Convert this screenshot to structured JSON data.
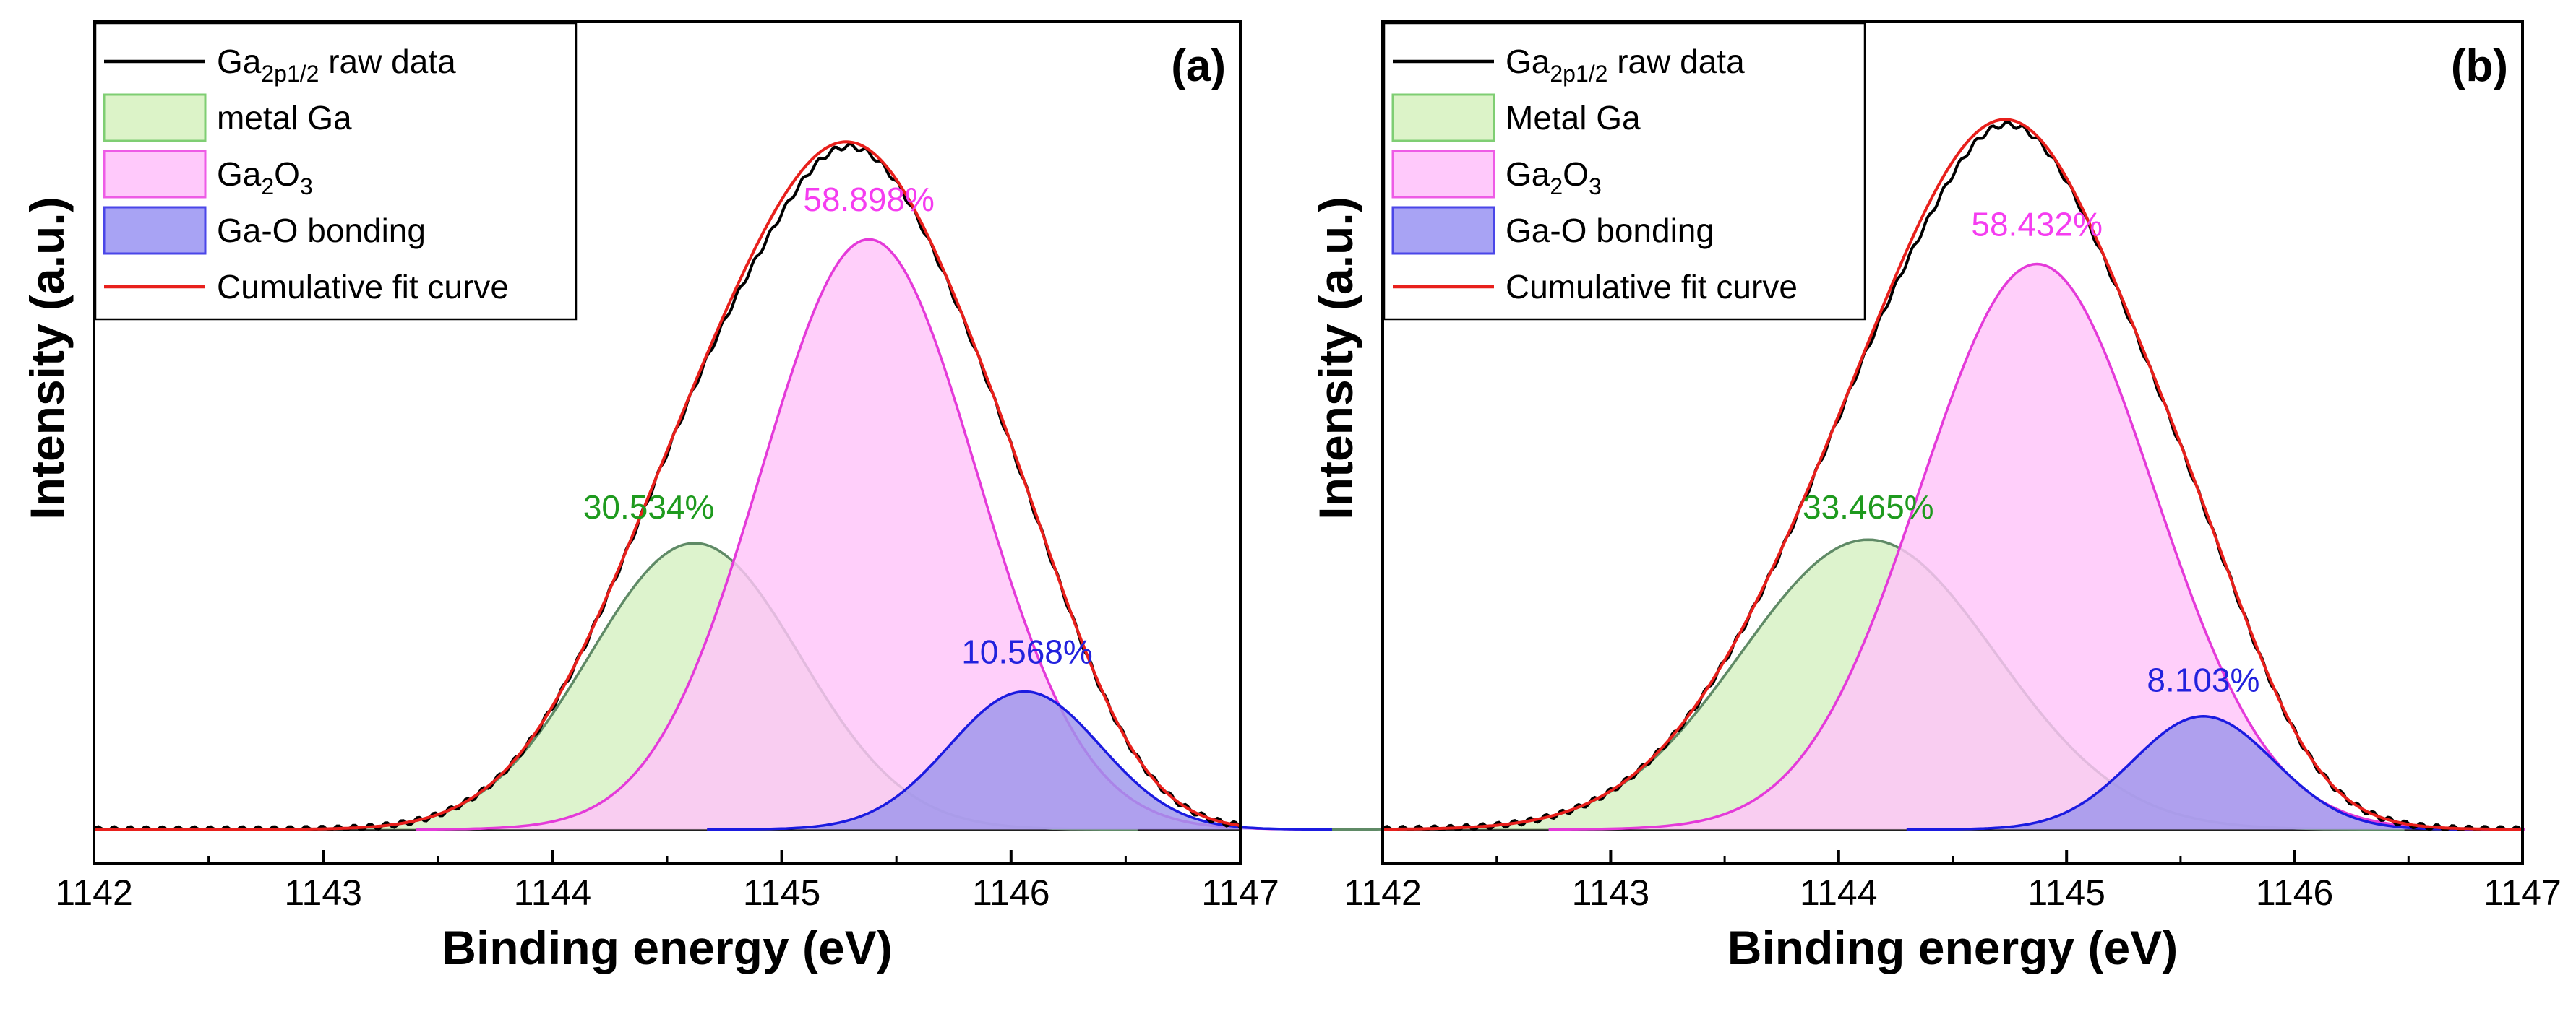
{
  "chart_data": [
    {
      "type": "line",
      "panel_label": "(a)",
      "xlabel": "Binding energy (eV)",
      "ylabel": "Intensity (a.u.)",
      "xlim": [
        1142,
        1147
      ],
      "ylim": [
        0,
        1.0
      ],
      "x_ticks": [
        1142,
        1143,
        1144,
        1145,
        1146,
        1147
      ],
      "legend_position": "top-left",
      "legend": [
        {
          "base": "Ga",
          "sub": "2p1/2",
          "rest": " raw data",
          "style": "line",
          "color": "#000000"
        },
        {
          "base": "metal Ga",
          "sub": "",
          "rest": "",
          "style": "patch",
          "fill": "#dcf3c8",
          "edge": "#7fce73"
        },
        {
          "base": "Ga",
          "sub": "2",
          "mid": "O",
          "sub2": "3",
          "style": "patch",
          "fill": "#ffc9fb",
          "edge": "#ee5be6"
        },
        {
          "base": "Ga-O bonding",
          "sub": "",
          "rest": "",
          "style": "patch",
          "fill": "#a8a3f4",
          "edge": "#4a46e8"
        },
        {
          "base": "Cumulative fit curve",
          "sub": "",
          "rest": "",
          "style": "line",
          "color": "#e8201c"
        }
      ],
      "peaks": [
        {
          "name": "metal Ga",
          "center": 1144.62,
          "height": 0.405,
          "sigma": 0.46,
          "fill": "#d5f0c2",
          "edge": "#5f8a66",
          "label": "30.534%",
          "label_color": "#1e9a1e"
        },
        {
          "name": "Ga2O3",
          "center": 1145.38,
          "height": 0.835,
          "sigma": 0.47,
          "fill": "#ffc5f9",
          "edge": "#e43ad9",
          "label": "58.898%",
          "label_color": "#f53df0"
        },
        {
          "name": "Ga-O bonding",
          "center": 1146.06,
          "height": 0.195,
          "sigma": 0.33,
          "fill": "#9d95ec",
          "edge": "#1b1be0",
          "label": "10.568%",
          "label_color": "#2222dd"
        }
      ],
      "label_positions_x": [
        1144.42,
        1145.38,
        1146.07
      ],
      "label_positions_y": [
        0.44,
        0.875,
        0.235
      ]
    },
    {
      "type": "line",
      "panel_label": "(b)",
      "xlabel": "Binding energy (eV)",
      "ylabel": "Intensity (a.u.)",
      "xlim": [
        1142,
        1147
      ],
      "ylim": [
        0,
        1.0
      ],
      "x_ticks": [
        1142,
        1143,
        1144,
        1145,
        1146,
        1147
      ],
      "legend_position": "top-left",
      "legend": [
        {
          "base": "Ga",
          "sub": "2p1/2",
          "rest": " raw data",
          "style": "line",
          "color": "#000000"
        },
        {
          "base": "Metal Ga",
          "sub": "",
          "rest": "",
          "style": "patch",
          "fill": "#dcf3c8",
          "edge": "#7fce73"
        },
        {
          "base": "Ga",
          "sub": "2",
          "mid": "O",
          "sub2": "3",
          "style": "patch",
          "fill": "#ffc9fb",
          "edge": "#ee5be6"
        },
        {
          "base": "Ga-O bonding",
          "sub": "",
          "rest": "",
          "style": "patch",
          "fill": "#a8a3f4",
          "edge": "#4a46e8"
        },
        {
          "base": "Cumulative fit curve",
          "sub": "",
          "rest": "",
          "style": "line",
          "color": "#e8201c"
        }
      ],
      "peaks": [
        {
          "name": "Metal Ga",
          "center": 1144.13,
          "height": 0.41,
          "sigma": 0.56,
          "fill": "#d5f0c2",
          "edge": "#5f8a66",
          "label": "33.465%",
          "label_color": "#1e9a1e"
        },
        {
          "name": "Ga2O3",
          "center": 1144.87,
          "height": 0.8,
          "sigma": 0.51,
          "fill": "#ffc5f9",
          "edge": "#e43ad9",
          "label": "58.432%",
          "label_color": "#f53df0"
        },
        {
          "name": "Ga-O bonding",
          "center": 1145.6,
          "height": 0.16,
          "sigma": 0.31,
          "fill": "#9d95ec",
          "edge": "#1b1be0",
          "label": "8.103%",
          "label_color": "#2222dd"
        }
      ],
      "label_positions_x": [
        1144.13,
        1144.87,
        1145.6
      ],
      "label_positions_y": [
        0.44,
        0.84,
        0.195
      ]
    }
  ]
}
